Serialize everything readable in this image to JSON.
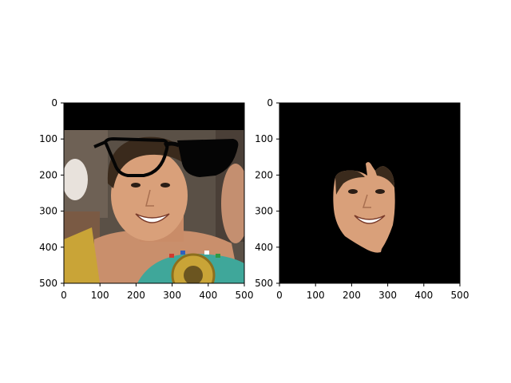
{
  "figure": {
    "panel_count": 2
  },
  "chart_data": [
    {
      "type": "image",
      "name": "original-photo-with-drawn-glasses",
      "description_visible": "photo of a smiling boxer holding a championship belt; black sunglasses drawn over the eyes; black band along the top rows",
      "xlim": [
        0,
        500
      ],
      "ylim": [
        500,
        0
      ],
      "xticks": [
        0,
        100,
        200,
        300,
        400,
        500
      ],
      "yticks": [
        0,
        100,
        200,
        300,
        400,
        500
      ],
      "xtick_labels": [
        "0",
        "100",
        "200",
        "300",
        "400",
        "500"
      ],
      "ytick_labels": [
        "0",
        "100",
        "200",
        "300",
        "400",
        "500"
      ],
      "title": "",
      "xlabel": "",
      "ylabel": "",
      "regions": {
        "black_band_rows": [
          0,
          75
        ],
        "face_center": [
          210,
          270
        ],
        "glasses_y": [
          100,
          205
        ]
      },
      "colors": {
        "background": "#5a5046",
        "skin": "#d9a07a",
        "hair": "#3a2a1c",
        "belt_gold": "#c9a437",
        "belt_teal": "#3fa79a",
        "glasses": "#050505"
      }
    },
    {
      "type": "image",
      "name": "masked-face",
      "description_visible": "black image with only the face region of the photo visible",
      "xlim": [
        0,
        500
      ],
      "ylim": [
        500,
        0
      ],
      "xticks": [
        0,
        100,
        200,
        300,
        400,
        500
      ],
      "yticks": [
        0,
        100,
        200,
        300,
        400,
        500
      ],
      "xtick_labels": [
        "0",
        "100",
        "200",
        "300",
        "400",
        "500"
      ],
      "ytick_labels": [
        "0",
        "100",
        "200",
        "300",
        "400",
        "500"
      ],
      "title": "",
      "xlabel": "",
      "ylabel": "",
      "regions": {
        "face_x": [
          150,
          320
        ],
        "face_y": [
          165,
          410
        ]
      },
      "colors": {
        "background": "#000000",
        "skin": "#d9a07a",
        "hair": "#3a2a1c"
      }
    }
  ]
}
